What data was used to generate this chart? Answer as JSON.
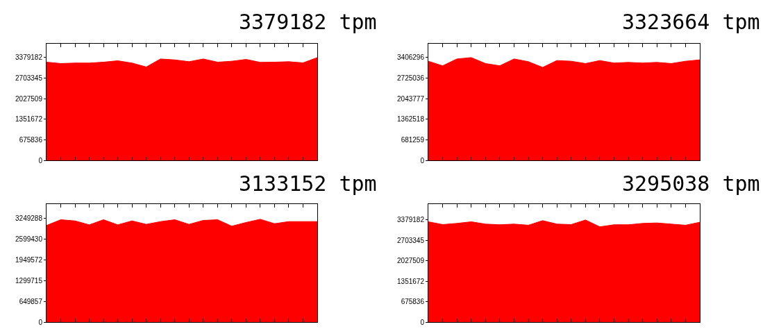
{
  "chart_data": [
    {
      "type": "area",
      "title": "3379182 tpm",
      "categories": [
        null,
        null,
        null,
        null,
        null,
        null,
        null,
        null,
        null,
        null,
        null,
        null,
        null,
        null,
        null,
        null,
        null,
        null,
        null,
        null
      ],
      "series": [
        {
          "color": "#ff0000",
          "values": [
            3229000,
            3184000,
            3199000,
            3199000,
            3229000,
            3274000,
            3199000,
            3071000,
            3334000,
            3304000,
            3244000,
            3334000,
            3229000,
            3259000,
            3319000,
            3222000,
            3229000,
            3244000,
            3206000,
            3379000
          ]
        }
      ],
      "ylim": [
        0,
        3830000
      ],
      "yticks": [
        0,
        675836,
        1351672,
        2027509,
        2703345,
        3379182
      ],
      "tick_labels": "y"
    },
    {
      "type": "area",
      "title": "3323664 tpm",
      "categories": [
        null,
        null,
        null,
        null,
        null,
        null,
        null,
        null,
        null,
        null,
        null,
        null,
        null,
        null,
        null,
        null,
        null,
        null,
        null,
        null
      ],
      "series": [
        {
          "color": "#ff0000",
          "values": [
            3285000,
            3134000,
            3361000,
            3406000,
            3209000,
            3134000,
            3361000,
            3270000,
            3081000,
            3308000,
            3285000,
            3209000,
            3308000,
            3225000,
            3247000,
            3225000,
            3247000,
            3209000,
            3285000,
            3331000
          ]
        }
      ],
      "ylim": [
        0,
        3860000
      ],
      "yticks": [
        0,
        681259,
        1362518,
        2043777,
        2725036,
        3406296
      ],
      "tick_labels": "y"
    },
    {
      "type": "area",
      "title": "3133152 tpm",
      "categories": [
        null,
        null,
        null,
        null,
        null,
        null,
        null,
        null,
        null,
        null,
        null,
        null,
        null,
        null,
        null,
        null,
        null,
        null,
        null,
        null
      ],
      "series": [
        {
          "color": "#ff0000",
          "values": [
            3033000,
            3213000,
            3177000,
            3054000,
            3213000,
            3054000,
            3177000,
            3069000,
            3155000,
            3213000,
            3069000,
            3192000,
            3213000,
            3011000,
            3127000,
            3228000,
            3090000,
            3155000,
            3155000,
            3155000
          ]
        }
      ],
      "ylim": [
        0,
        3700000
      ],
      "yticks": [
        0,
        649857,
        1299715,
        1949572,
        2599430,
        3249288
      ],
      "tick_labels": "y"
    },
    {
      "type": "area",
      "title": "3295038 tpm",
      "categories": [
        null,
        null,
        null,
        null,
        null,
        null,
        null,
        null,
        null,
        null,
        null,
        null,
        null,
        null,
        null,
        null,
        null,
        null,
        null,
        null
      ],
      "series": [
        {
          "color": "#ff0000",
          "values": [
            3319000,
            3228000,
            3266000,
            3319000,
            3243000,
            3221000,
            3243000,
            3206000,
            3357000,
            3243000,
            3228000,
            3379000,
            3153000,
            3221000,
            3221000,
            3266000,
            3281000,
            3243000,
            3206000,
            3304000
          ]
        }
      ],
      "ylim": [
        0,
        3900000
      ],
      "yticks": [
        0,
        675836,
        1351672,
        2027509,
        2703345,
        3379182
      ],
      "tick_labels": "y"
    }
  ]
}
